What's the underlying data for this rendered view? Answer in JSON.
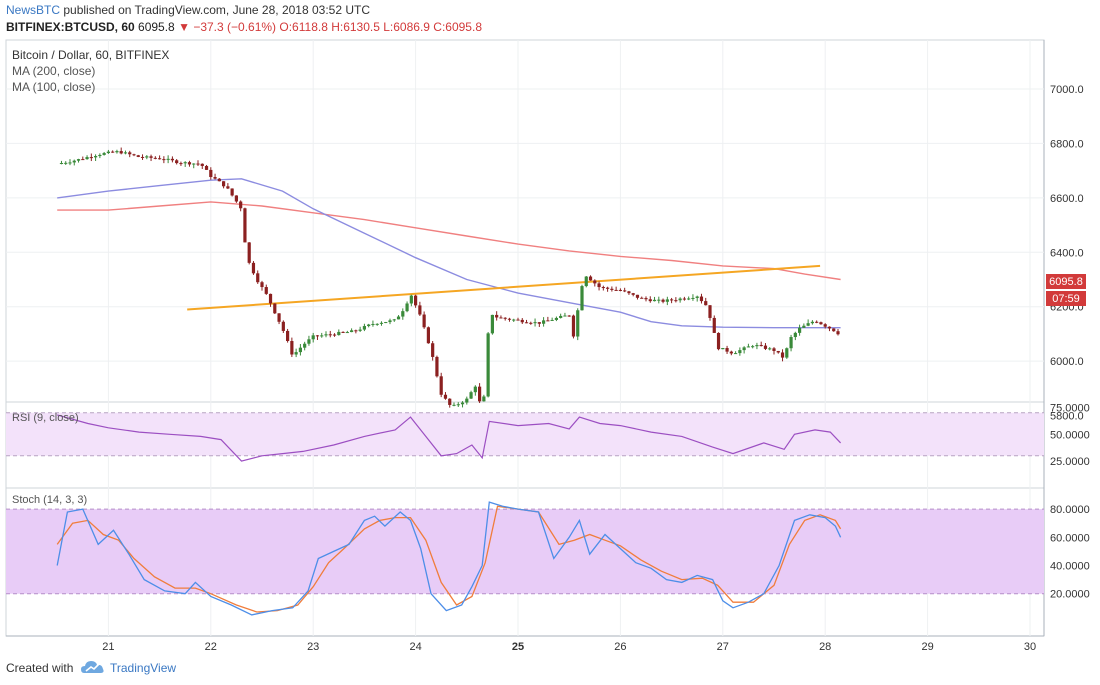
{
  "header": {
    "publisher": "NewsBTC",
    "published_text": "published on TradingView.com, June 28, 2018 03:52 UTC",
    "symbol": "BITFINEX:BTCUSD, 60",
    "last": "6095.8",
    "change": "−37.3 (−0.61%)",
    "ohlc": "O:6118.8 H:6130.5 L:6086.9 C:6095.8"
  },
  "footer": {
    "created_with": "Created with",
    "brand": "TradingView"
  },
  "colors": {
    "up": "#3a8a3a",
    "down": "#8b2020",
    "ma200": "#f08080",
    "ma100": "#8c8ce0",
    "trendline": "#f5a623",
    "rsi": "#9c4fc2",
    "stoch_k": "#4d8ee8",
    "stoch_d": "#f07d3c",
    "price_tag": "#d23a3a"
  },
  "chart_data": {
    "type": "candlestick",
    "title": "Bitcoin / Dollar, 60, BITFINEX",
    "legend": [
      "MA (200, close)",
      "MA (100, close)"
    ],
    "y_ticks": [
      "7000.0",
      "6800.0",
      "6600.0",
      "6400.0",
      "6200.0",
      "6000.0",
      "5800.0"
    ],
    "ylim": [
      5850,
      7180
    ],
    "x_ticks": [
      "21",
      "22",
      "23",
      "24",
      "25",
      "26",
      "27",
      "28",
      "29",
      "30"
    ],
    "last_price_label": "6095.8",
    "countdown_label": "07:59",
    "price_path": [
      [
        20.5,
        6725
      ],
      [
        20.7,
        6740
      ],
      [
        20.9,
        6760
      ],
      [
        21.1,
        6770
      ],
      [
        21.3,
        6750
      ],
      [
        21.5,
        6745
      ],
      [
        21.7,
        6730
      ],
      [
        21.9,
        6725
      ],
      [
        22.0,
        6680
      ],
      [
        22.15,
        6640
      ],
      [
        22.3,
        6560
      ],
      [
        22.35,
        6380
      ],
      [
        22.45,
        6300
      ],
      [
        22.55,
        6240
      ],
      [
        22.7,
        6120
      ],
      [
        22.8,
        6020
      ],
      [
        22.9,
        6060
      ],
      [
        23.0,
        6090
      ],
      [
        23.2,
        6100
      ],
      [
        23.4,
        6110
      ],
      [
        23.6,
        6140
      ],
      [
        23.8,
        6150
      ],
      [
        23.9,
        6200
      ],
      [
        23.95,
        6250
      ],
      [
        24.05,
        6160
      ],
      [
        24.15,
        6040
      ],
      [
        24.25,
        5880
      ],
      [
        24.35,
        5830
      ],
      [
        24.5,
        5860
      ],
      [
        24.6,
        5920
      ],
      [
        24.65,
        5780
      ],
      [
        24.7,
        6040
      ],
      [
        24.72,
        6180
      ],
      [
        24.8,
        6160
      ],
      [
        25.0,
        6150
      ],
      [
        25.2,
        6140
      ],
      [
        25.4,
        6160
      ],
      [
        25.5,
        6170
      ],
      [
        25.55,
        6080
      ],
      [
        25.6,
        6240
      ],
      [
        25.65,
        6320
      ],
      [
        25.8,
        6270
      ],
      [
        26.0,
        6260
      ],
      [
        26.2,
        6230
      ],
      [
        26.4,
        6220
      ],
      [
        26.6,
        6230
      ],
      [
        26.75,
        6240
      ],
      [
        26.85,
        6200
      ],
      [
        26.95,
        6050
      ],
      [
        27.1,
        6030
      ],
      [
        27.3,
        6060
      ],
      [
        27.5,
        6040
      ],
      [
        27.6,
        6010
      ],
      [
        27.65,
        6080
      ],
      [
        27.75,
        6120
      ],
      [
        27.9,
        6150
      ],
      [
        28.0,
        6130
      ],
      [
        28.1,
        6110
      ],
      [
        28.15,
        6095.8
      ]
    ],
    "ma200": [
      [
        20.5,
        6555
      ],
      [
        21.0,
        6555
      ],
      [
        21.5,
        6570
      ],
      [
        22.0,
        6585
      ],
      [
        22.5,
        6570
      ],
      [
        23.0,
        6545
      ],
      [
        23.5,
        6520
      ],
      [
        24.0,
        6490
      ],
      [
        24.5,
        6460
      ],
      [
        25.0,
        6430
      ],
      [
        25.5,
        6405
      ],
      [
        26.0,
        6385
      ],
      [
        26.5,
        6370
      ],
      [
        27.0,
        6350
      ],
      [
        27.5,
        6340
      ],
      [
        27.8,
        6320
      ],
      [
        28.15,
        6300
      ]
    ],
    "ma100": [
      [
        20.5,
        6600
      ],
      [
        21.0,
        6625
      ],
      [
        21.5,
        6645
      ],
      [
        22.0,
        6665
      ],
      [
        22.3,
        6670
      ],
      [
        22.7,
        6625
      ],
      [
        23.0,
        6560
      ],
      [
        23.5,
        6470
      ],
      [
        24.0,
        6380
      ],
      [
        24.5,
        6300
      ],
      [
        25.0,
        6250
      ],
      [
        25.5,
        6215
      ],
      [
        26.0,
        6180
      ],
      [
        26.3,
        6145
      ],
      [
        26.6,
        6130
      ],
      [
        27.0,
        6125
      ],
      [
        27.5,
        6123
      ],
      [
        28.15,
        6123
      ]
    ],
    "trendline": [
      [
        21.77,
        6190
      ],
      [
        27.95,
        6350
      ]
    ],
    "rsi": {
      "label": "RSI (9, close)",
      "ticks": [
        "75.0000",
        "50.0000",
        "25.0000"
      ],
      "ylim": [
        0,
        80
      ],
      "band": [
        30,
        70
      ],
      "values": [
        [
          20.5,
          68
        ],
        [
          20.8,
          60
        ],
        [
          21.0,
          56
        ],
        [
          21.3,
          52
        ],
        [
          21.6,
          50
        ],
        [
          21.9,
          48
        ],
        [
          22.1,
          45
        ],
        [
          22.3,
          25
        ],
        [
          22.5,
          30
        ],
        [
          22.7,
          32
        ],
        [
          22.9,
          34
        ],
        [
          23.2,
          40
        ],
        [
          23.5,
          48
        ],
        [
          23.8,
          54
        ],
        [
          23.95,
          66
        ],
        [
          24.1,
          48
        ],
        [
          24.25,
          30
        ],
        [
          24.4,
          32
        ],
        [
          24.55,
          40
        ],
        [
          24.65,
          28
        ],
        [
          24.72,
          62
        ],
        [
          25.0,
          58
        ],
        [
          25.3,
          60
        ],
        [
          25.5,
          55
        ],
        [
          25.6,
          66
        ],
        [
          25.8,
          60
        ],
        [
          26.0,
          58
        ],
        [
          26.3,
          52
        ],
        [
          26.6,
          48
        ],
        [
          26.9,
          38
        ],
        [
          27.1,
          32
        ],
        [
          27.4,
          42
        ],
        [
          27.6,
          36
        ],
        [
          27.7,
          50
        ],
        [
          27.9,
          54
        ],
        [
          28.05,
          52
        ],
        [
          28.15,
          42
        ]
      ]
    },
    "stoch": {
      "label": "Stoch (14, 3, 3)",
      "ticks": [
        "80.0000",
        "60.0000",
        "40.0000",
        "20.0000"
      ],
      "ylim": [
        0,
        100
      ],
      "band": [
        20,
        80
      ],
      "k": [
        [
          20.5,
          40
        ],
        [
          20.6,
          78
        ],
        [
          20.75,
          80
        ],
        [
          20.9,
          55
        ],
        [
          21.05,
          65
        ],
        [
          21.2,
          48
        ],
        [
          21.35,
          30
        ],
        [
          21.55,
          22
        ],
        [
          21.75,
          20
        ],
        [
          21.85,
          28
        ],
        [
          22.0,
          18
        ],
        [
          22.2,
          12
        ],
        [
          22.4,
          5
        ],
        [
          22.6,
          8
        ],
        [
          22.8,
          10
        ],
        [
          22.95,
          22
        ],
        [
          23.05,
          45
        ],
        [
          23.2,
          50
        ],
        [
          23.35,
          55
        ],
        [
          23.5,
          72
        ],
        [
          23.6,
          75
        ],
        [
          23.7,
          68
        ],
        [
          23.85,
          78
        ],
        [
          23.95,
          72
        ],
        [
          24.05,
          52
        ],
        [
          24.15,
          20
        ],
        [
          24.3,
          8
        ],
        [
          24.45,
          12
        ],
        [
          24.55,
          25
        ],
        [
          24.65,
          40
        ],
        [
          24.72,
          85
        ],
        [
          24.85,
          82
        ],
        [
          25.0,
          80
        ],
        [
          25.2,
          78
        ],
        [
          25.35,
          45
        ],
        [
          25.5,
          60
        ],
        [
          25.6,
          72
        ],
        [
          25.7,
          48
        ],
        [
          25.85,
          62
        ],
        [
          26.0,
          52
        ],
        [
          26.15,
          42
        ],
        [
          26.3,
          38
        ],
        [
          26.45,
          30
        ],
        [
          26.6,
          28
        ],
        [
          26.75,
          33
        ],
        [
          26.9,
          30
        ],
        [
          27.0,
          15
        ],
        [
          27.1,
          10
        ],
        [
          27.25,
          14
        ],
        [
          27.4,
          20
        ],
        [
          27.55,
          40
        ],
        [
          27.7,
          72
        ],
        [
          27.85,
          76
        ],
        [
          28.0,
          74
        ],
        [
          28.1,
          68
        ],
        [
          28.15,
          60
        ]
      ],
      "d": [
        [
          20.5,
          55
        ],
        [
          20.65,
          70
        ],
        [
          20.8,
          72
        ],
        [
          20.95,
          62
        ],
        [
          21.1,
          58
        ],
        [
          21.25,
          45
        ],
        [
          21.45,
          32
        ],
        [
          21.65,
          24
        ],
        [
          21.85,
          24
        ],
        [
          22.0,
          20
        ],
        [
          22.25,
          12
        ],
        [
          22.45,
          7
        ],
        [
          22.65,
          8
        ],
        [
          22.85,
          12
        ],
        [
          23.0,
          25
        ],
        [
          23.15,
          42
        ],
        [
          23.3,
          52
        ],
        [
          23.5,
          66
        ],
        [
          23.65,
          72
        ],
        [
          23.8,
          74
        ],
        [
          23.95,
          74
        ],
        [
          24.1,
          58
        ],
        [
          24.25,
          28
        ],
        [
          24.4,
          12
        ],
        [
          24.55,
          18
        ],
        [
          24.68,
          42
        ],
        [
          24.8,
          82
        ],
        [
          25.0,
          80
        ],
        [
          25.2,
          78
        ],
        [
          25.4,
          55
        ],
        [
          25.55,
          58
        ],
        [
          25.7,
          62
        ],
        [
          25.85,
          58
        ],
        [
          26.0,
          54
        ],
        [
          26.2,
          44
        ],
        [
          26.4,
          36
        ],
        [
          26.6,
          30
        ],
        [
          26.8,
          31
        ],
        [
          26.95,
          26
        ],
        [
          27.1,
          14
        ],
        [
          27.3,
          14
        ],
        [
          27.5,
          26
        ],
        [
          27.65,
          55
        ],
        [
          27.8,
          72
        ],
        [
          27.95,
          76
        ],
        [
          28.1,
          72
        ],
        [
          28.15,
          66
        ]
      ]
    }
  }
}
